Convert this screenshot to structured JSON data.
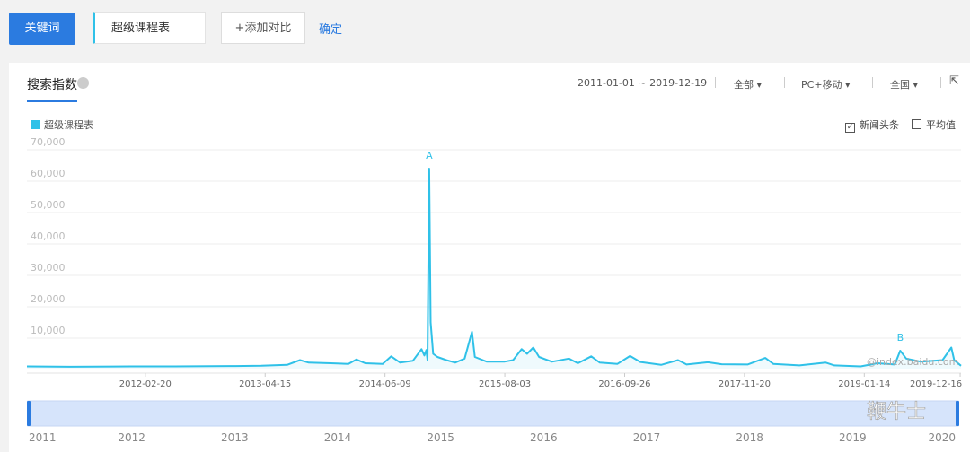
{
  "toolbar": {
    "keyword_button": "关键词",
    "input": "超级课程表",
    "add_compare": "+添加对比",
    "confirm": "确定"
  },
  "header": {
    "tab": "搜索指数",
    "date_range": "2011-01-01 ~ 2019-12-19",
    "device_scope": "全部",
    "device": "PC+移动",
    "region": "全国"
  },
  "options": {
    "news": "新闻头条",
    "average": "平均值"
  },
  "watermarks": {
    "site": "@index.baidu.com",
    "brand": "鞭牛士"
  },
  "chart_data": {
    "type": "line",
    "x": [
      "2011-01-01",
      "2011-06-01",
      "2012-01-01",
      "2012-06-01",
      "2013-01-01",
      "2013-04-01",
      "2013-07-01",
      "2013-08-15",
      "2013-09-15",
      "2013-12-01",
      "2014-02-01",
      "2014-03-01",
      "2014-04-01",
      "2014-06-01",
      "2014-07-01",
      "2014-08-01",
      "2014-09-15",
      "2014-10-15",
      "2014-10-25",
      "2014-11-01",
      "2014-11-05",
      "2014-11-11",
      "2014-11-16",
      "2014-11-25",
      "2014-12-10",
      "2015-01-10",
      "2015-02-10",
      "2015-03-15",
      "2015-04-10",
      "2015-04-20",
      "2015-06-01",
      "2015-08-01",
      "2015-09-01",
      "2015-10-01",
      "2015-10-20",
      "2015-11-11",
      "2015-12-01",
      "2016-01-15",
      "2016-03-15",
      "2016-04-15",
      "2016-06-01",
      "2016-07-01",
      "2016-09-01",
      "2016-10-15",
      "2016-11-20",
      "2017-02-01",
      "2017-04-01",
      "2017-05-01",
      "2017-07-15",
      "2017-09-01",
      "2017-12-01",
      "2018-02-01",
      "2018-03-01",
      "2018-06-01",
      "2018-09-01",
      "2018-10-01",
      "2019-01-01",
      "2019-03-01",
      "2019-05-01",
      "2019-05-20",
      "2019-06-10",
      "2019-08-01",
      "2019-10-15",
      "2019-11-15",
      "2019-11-25",
      "2019-12-19"
    ],
    "series": [
      {
        "name": "超级课程表",
        "color": "#2fc1e8",
        "values": [
          1000,
          900,
          1000,
          1000,
          1100,
          1200,
          1500,
          3000,
          2200,
          2000,
          1800,
          3200,
          2000,
          1800,
          4200,
          2200,
          2800,
          6500,
          4500,
          6200,
          3000,
          64000,
          15000,
          5000,
          4000,
          3000,
          2200,
          3500,
          12000,
          4000,
          2500,
          2500,
          3000,
          6500,
          5000,
          7000,
          4000,
          2500,
          3500,
          2000,
          4200,
          2200,
          1800,
          4300,
          2400,
          1500,
          3000,
          1600,
          2300,
          1700,
          1600,
          3700,
          1800,
          1300,
          2200,
          1300,
          1000,
          2000,
          1600,
          6000,
          3500,
          2500,
          3000,
          7000,
          3000,
          1200
        ]
      }
    ],
    "xlim": [
      "2011-01-01",
      "2019-12-19"
    ],
    "xticks": [
      "2012-02-20",
      "2013-04-15",
      "2014-06-09",
      "2015-08-03",
      "2016-09-26",
      "2017-11-20",
      "2019-01-14",
      "2019-12-16"
    ],
    "ylim": [
      0,
      70000
    ],
    "yticks": [
      {
        "value": 10000,
        "label": "10,000"
      },
      {
        "value": 20000,
        "label": "20,000"
      },
      {
        "value": 30000,
        "label": "30,000"
      },
      {
        "value": 40000,
        "label": "40,000"
      },
      {
        "value": 50000,
        "label": "50,000"
      },
      {
        "value": 60000,
        "label": "60,000"
      },
      {
        "value": 70000,
        "label": "70,000"
      }
    ],
    "grid": true,
    "annotations": [
      {
        "text": "A",
        "x": "2014-11-11"
      },
      {
        "text": "B",
        "x": "2019-05-20"
      }
    ],
    "navigator": {
      "xlim": [
        2011,
        2020
      ],
      "xticks": [
        2011,
        2012,
        2013,
        2014,
        2015,
        2016,
        2017,
        2018,
        2019,
        2020
      ]
    }
  }
}
